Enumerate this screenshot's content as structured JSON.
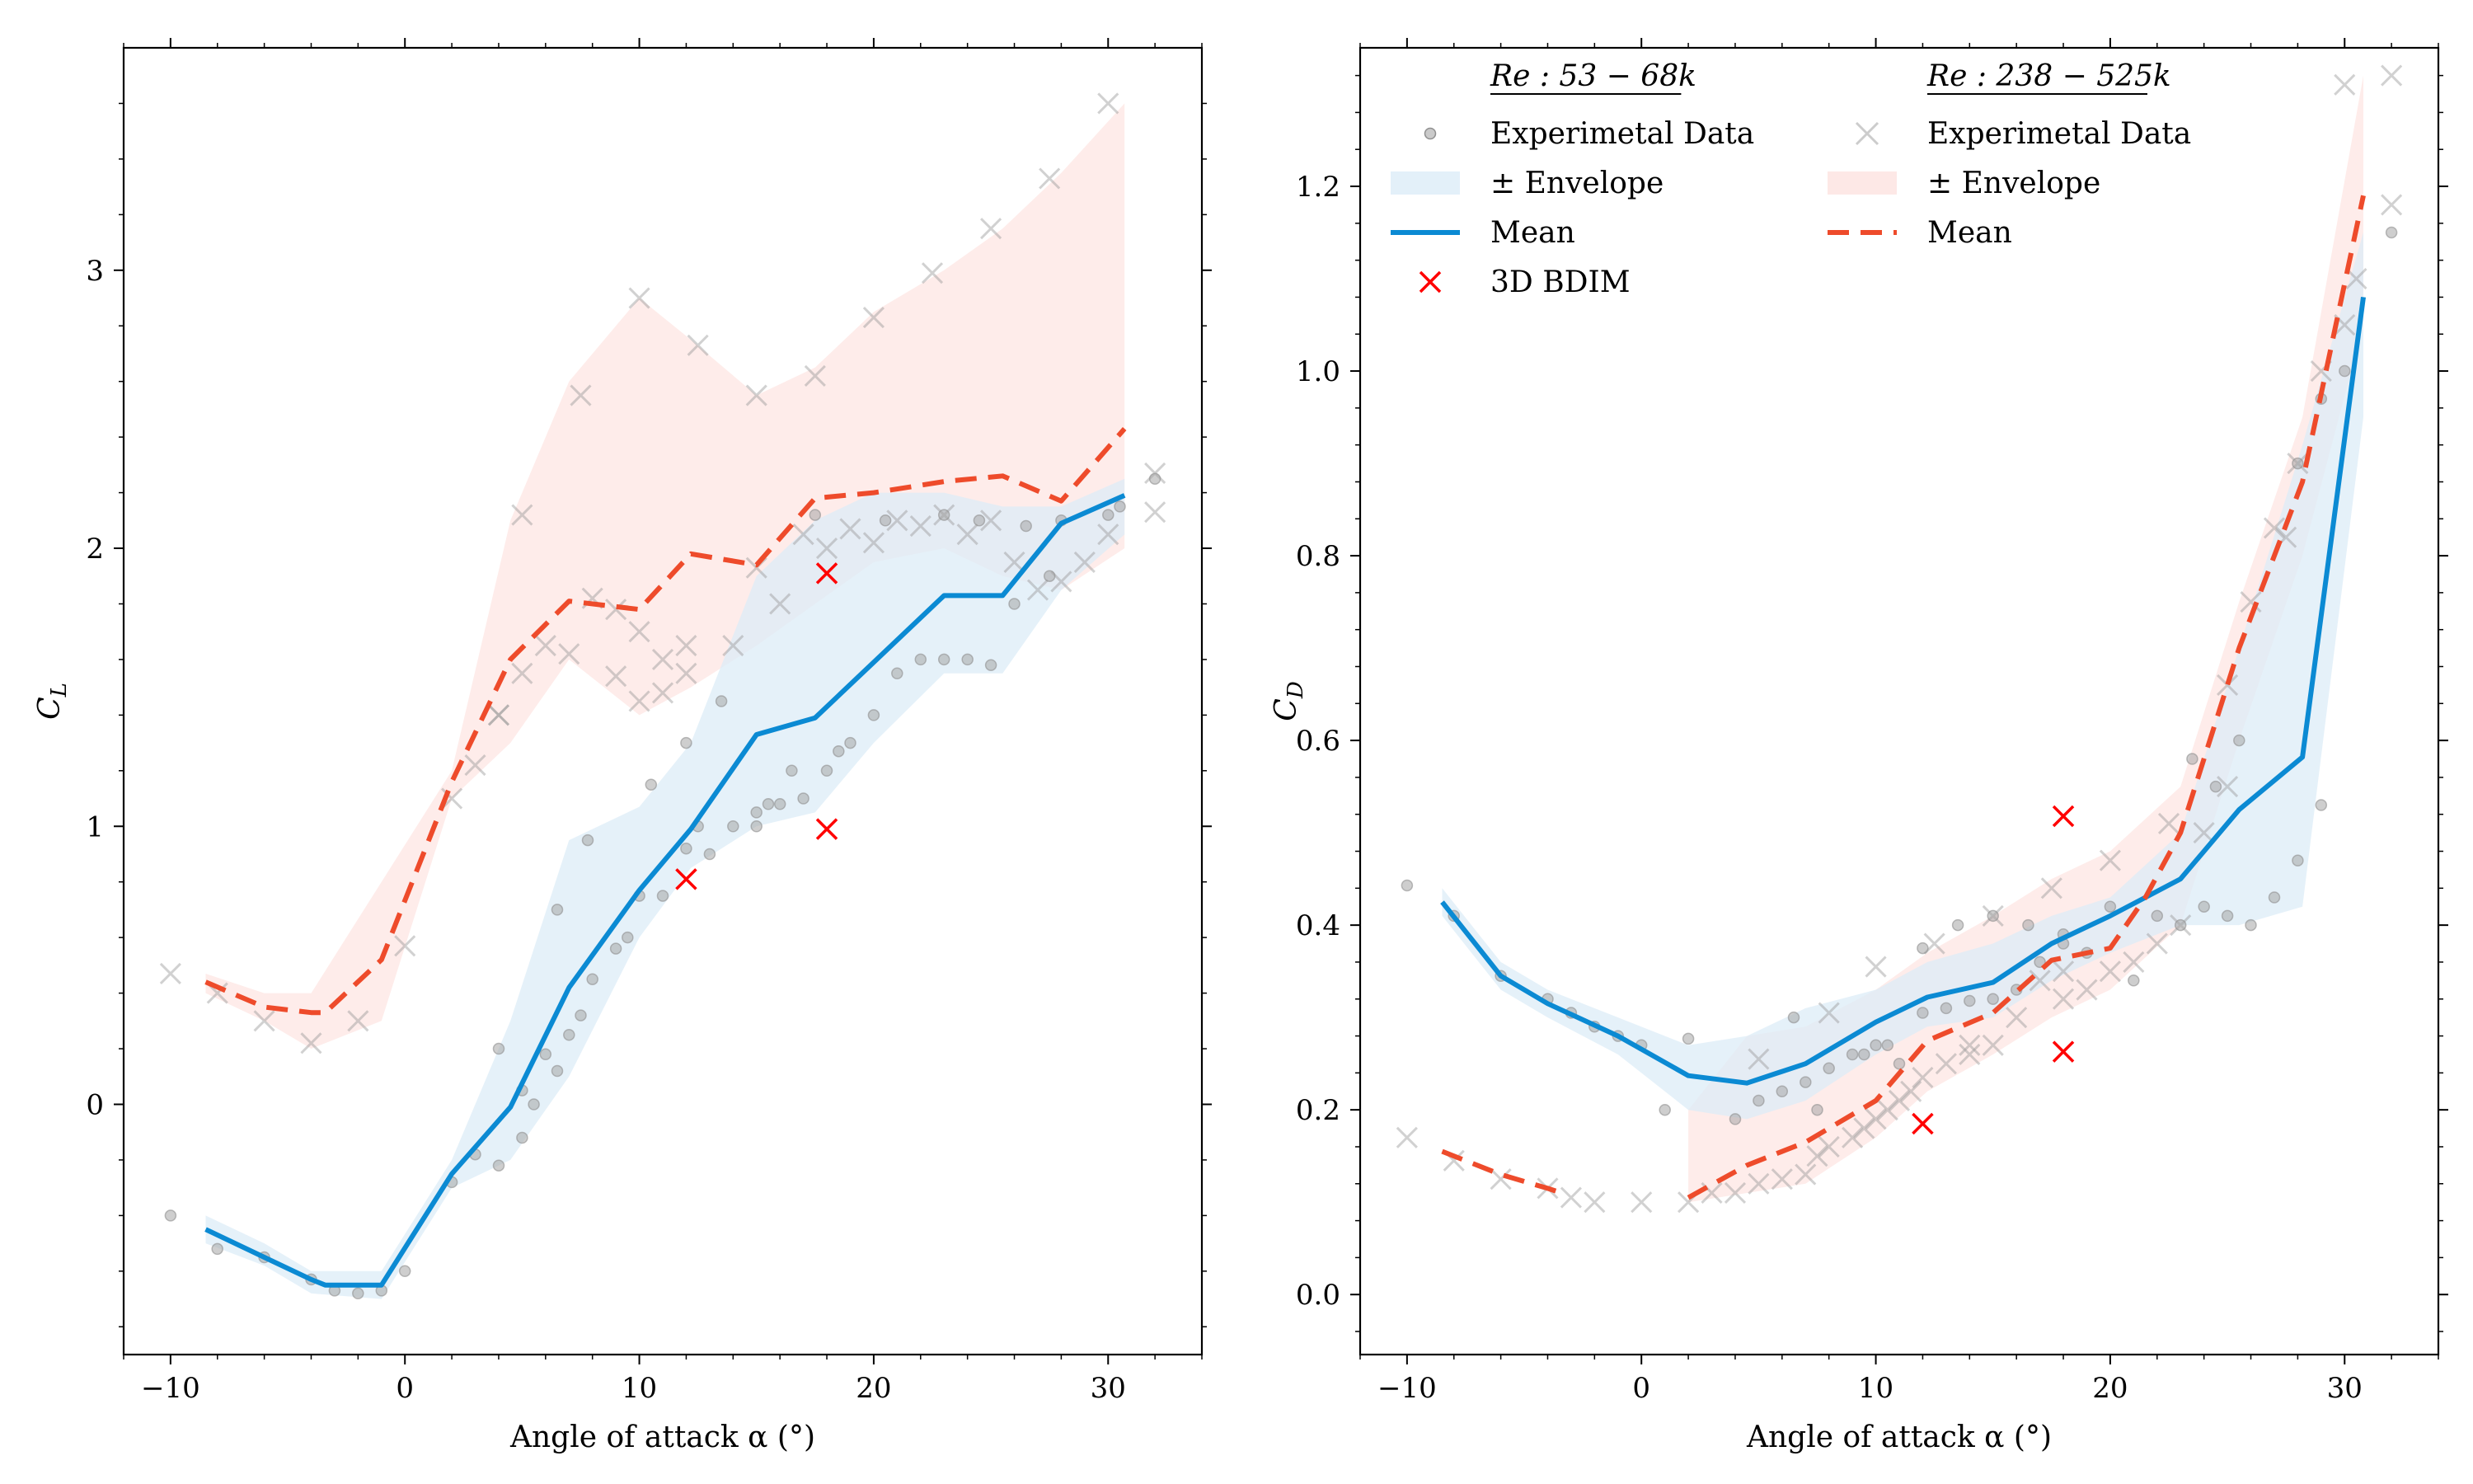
{
  "chart_data": [
    {
      "type": "line",
      "panel": "left",
      "xlabel": "Angle of attack α (°)",
      "ylabel": "C_L",
      "xlim": [
        -12,
        34
      ],
      "ylim": [
        -0.9,
        3.8
      ],
      "xticks": [
        -10,
        0,
        10,
        20,
        30
      ],
      "xtick_labels": [
        "−10",
        "0",
        "10",
        "20",
        "30"
      ],
      "yticks": [
        0,
        1,
        2,
        3
      ],
      "ytick_labels": [
        "0",
        "1",
        "2",
        "3"
      ],
      "low_re_mean": {
        "x": [
          -8.5,
          -6,
          -4,
          -3.4,
          -1,
          2,
          4.5,
          7,
          10,
          12.2,
          15,
          17.5,
          20,
          23,
          25.5,
          28,
          30.7
        ],
        "y": [
          -0.45,
          -0.55,
          -0.63,
          -0.65,
          -0.65,
          -0.25,
          -0.01,
          0.42,
          0.77,
          0.99,
          1.33,
          1.39,
          1.59,
          1.83,
          1.83,
          2.09,
          2.19
        ]
      },
      "low_re_band_upper": {
        "x": [
          -8.5,
          -6,
          -4,
          -1,
          2,
          4.5,
          7,
          10,
          12.2,
          15,
          17.5,
          20,
          23,
          25.5,
          28,
          30.7
        ],
        "y": [
          -0.4,
          -0.5,
          -0.6,
          -0.6,
          -0.2,
          0.3,
          0.95,
          1.07,
          1.3,
          1.9,
          2.1,
          2.2,
          2.2,
          2.15,
          2.15,
          2.25
        ]
      },
      "low_re_band_lower": {
        "x": [
          -8.5,
          -6,
          -4,
          -1,
          2,
          4.5,
          7,
          10,
          12.2,
          15,
          17.5,
          20,
          23,
          25.5,
          28,
          30.7
        ],
        "y": [
          -0.5,
          -0.58,
          -0.68,
          -0.7,
          -0.3,
          -0.2,
          0.1,
          0.6,
          0.85,
          1.0,
          1.05,
          1.3,
          1.55,
          1.55,
          1.85,
          2.05
        ]
      },
      "high_re_mean": {
        "x": [
          -8.5,
          -6,
          -4,
          -3.4,
          -1,
          2,
          4.5,
          7,
          10,
          12.2,
          15,
          17.5,
          20,
          23,
          25.5,
          28,
          30.7
        ],
        "y": [
          0.44,
          0.35,
          0.33,
          0.33,
          0.52,
          1.16,
          1.6,
          1.81,
          1.78,
          1.98,
          1.94,
          2.18,
          2.2,
          2.24,
          2.26,
          2.17,
          2.43
        ]
      },
      "high_re_band_upper": {
        "x": [
          -8.5,
          -6,
          -4,
          -1,
          2,
          4.5,
          7,
          10,
          12.2,
          15,
          17.5,
          20,
          23,
          25.5,
          28,
          30.7
        ],
        "y": [
          0.47,
          0.4,
          0.4,
          0.8,
          1.2,
          2.1,
          2.6,
          2.9,
          2.75,
          2.55,
          2.65,
          2.85,
          3.0,
          3.15,
          3.35,
          3.6
        ]
      },
      "high_re_band_lower": {
        "x": [
          -8.5,
          -6,
          -4,
          -1,
          2,
          4.5,
          7,
          10,
          12.2,
          15,
          17.5,
          20,
          23,
          25.5,
          28,
          30.7
        ],
        "y": [
          0.4,
          0.3,
          0.2,
          0.3,
          1.1,
          1.3,
          1.6,
          1.4,
          1.5,
          1.65,
          1.8,
          1.95,
          2.0,
          1.9,
          1.85,
          2.0
        ]
      },
      "low_re_experimental": {
        "x": [
          -10,
          -8,
          -6,
          -4,
          -3,
          -2,
          -1,
          0,
          2,
          3,
          4,
          5,
          5.5,
          6,
          6.5,
          7,
          7.5,
          8,
          9,
          10,
          11,
          12,
          13,
          14,
          15,
          16,
          17,
          18,
          19,
          20,
          21,
          22,
          23,
          24,
          25,
          26,
          28,
          30,
          32,
          4,
          5,
          6.5,
          7.8,
          9.5,
          10.5,
          12,
          12.5,
          13.5,
          15,
          15.5,
          16.5,
          17.5,
          18.5,
          20.5,
          23,
          24.5,
          26.5,
          27.5,
          30.5
        ],
        "y": [
          -0.4,
          -0.52,
          -0.55,
          -0.63,
          -0.67,
          -0.68,
          -0.67,
          -0.6,
          -0.28,
          -0.18,
          -0.22,
          -0.12,
          0.0,
          0.18,
          0.12,
          0.25,
          0.32,
          0.45,
          0.56,
          0.75,
          0.75,
          0.92,
          0.9,
          1.0,
          1.0,
          1.08,
          1.1,
          1.2,
          1.3,
          1.4,
          1.55,
          1.6,
          1.6,
          1.6,
          1.58,
          1.8,
          2.1,
          2.12,
          2.25,
          0.2,
          0.05,
          0.7,
          0.95,
          0.6,
          1.15,
          1.3,
          1.0,
          1.45,
          1.05,
          1.08,
          1.2,
          2.12,
          1.27,
          2.1,
          2.12,
          2.1,
          2.08,
          1.9,
          2.15
        ]
      },
      "high_re_experimental": {
        "x": [
          -10,
          -8,
          -6,
          -4,
          -2,
          0,
          2,
          3,
          4,
          5,
          6,
          7,
          8,
          9,
          10,
          11,
          12,
          10,
          11,
          12,
          14,
          15,
          16,
          17,
          18,
          19,
          20,
          21,
          22,
          23,
          24,
          25,
          26,
          27,
          28,
          29,
          30,
          32,
          4,
          5,
          7.5,
          9,
          10,
          12.5,
          15,
          17.5,
          20,
          22.5,
          25,
          27.5,
          30,
          32
        ],
        "y": [
          0.47,
          0.4,
          0.3,
          0.22,
          0.3,
          0.57,
          1.1,
          1.22,
          1.4,
          1.55,
          1.65,
          1.62,
          1.82,
          1.54,
          1.7,
          1.6,
          1.65,
          1.45,
          1.48,
          1.55,
          1.65,
          1.93,
          1.8,
          2.05,
          2.0,
          2.07,
          2.02,
          2.1,
          2.08,
          2.12,
          2.05,
          2.1,
          1.95,
          1.85,
          1.88,
          1.95,
          2.05,
          2.13,
          1.4,
          2.12,
          2.55,
          1.78,
          2.9,
          2.73,
          2.55,
          2.62,
          2.83,
          2.99,
          3.15,
          3.33,
          3.6,
          2.27
        ]
      },
      "bdim_3d": {
        "x": [
          12,
          18,
          18
        ],
        "y": [
          0.81,
          1.91,
          0.99
        ]
      }
    },
    {
      "type": "line",
      "panel": "right",
      "xlabel": "Angle of attack α (°)",
      "ylabel": "C_D",
      "xlim": [
        -12,
        34
      ],
      "ylim": [
        -0.065,
        1.35
      ],
      "xticks": [
        -10,
        0,
        10,
        20,
        30
      ],
      "xtick_labels": [
        "−10",
        "0",
        "10",
        "20",
        "30"
      ],
      "yticks": [
        0.0,
        0.2,
        0.4,
        0.6,
        0.8,
        1.0,
        1.2
      ],
      "ytick_labels": [
        "0.0",
        "0.2",
        "0.4",
        "0.6",
        "0.8",
        "1.0",
        "1.2"
      ],
      "low_re_mean": {
        "x": [
          -8.5,
          -6,
          -4,
          -1,
          2,
          4.5,
          7,
          10,
          12.2,
          15,
          17.5,
          20,
          21.5,
          23,
          25.5,
          28.2,
          30.8
        ],
        "y": [
          0.425,
          0.345,
          0.315,
          0.28,
          0.237,
          0.229,
          0.25,
          0.295,
          0.322,
          0.338,
          0.38,
          0.41,
          0.43,
          0.45,
          0.525,
          0.582,
          1.08
        ]
      },
      "low_re_band_upper": {
        "x": [
          -8.5,
          -6,
          -4,
          -1,
          2,
          4.5,
          7,
          10,
          12.2,
          15,
          17.5,
          20,
          23,
          25.5,
          28.2,
          30.8
        ],
        "y": [
          0.44,
          0.36,
          0.33,
          0.3,
          0.27,
          0.28,
          0.31,
          0.33,
          0.36,
          0.38,
          0.41,
          0.43,
          0.5,
          0.7,
          0.92,
          1.15
        ]
      },
      "low_re_band_lower": {
        "x": [
          -8.5,
          -6,
          -4,
          -1,
          2,
          4.5,
          7,
          10,
          12.2,
          15,
          17.5,
          20,
          23,
          25.5,
          28.2,
          30.8
        ],
        "y": [
          0.41,
          0.33,
          0.3,
          0.26,
          0.2,
          0.19,
          0.21,
          0.26,
          0.29,
          0.3,
          0.34,
          0.37,
          0.4,
          0.4,
          0.42,
          0.95
        ]
      },
      "high_re_mean_segment1": {
        "x": [
          -8.5,
          -6,
          -4,
          -3.4
        ],
        "y": [
          0.155,
          0.13,
          0.115,
          0.11
        ]
      },
      "high_re_mean_segment2": {
        "x": [
          2,
          4.5,
          7,
          10,
          12.2,
          15,
          17.5,
          20,
          21.5,
          23,
          25.5,
          28.2,
          30.8
        ],
        "y": [
          0.105,
          0.14,
          0.165,
          0.21,
          0.275,
          0.305,
          0.362,
          0.375,
          0.43,
          0.5,
          0.7,
          0.88,
          1.19
        ]
      },
      "high_re_band_upper": {
        "x": [
          2,
          4.5,
          7,
          10,
          12.2,
          15,
          17.5,
          20,
          23,
          25.5,
          28.2,
          30.8
        ],
        "y": [
          0.2,
          0.28,
          0.29,
          0.33,
          0.37,
          0.41,
          0.45,
          0.48,
          0.55,
          0.75,
          0.95,
          1.32
        ]
      },
      "high_re_band_lower": {
        "x": [
          2,
          4.5,
          7,
          10,
          12.2,
          15,
          17.5,
          20,
          23,
          25.5,
          28.2,
          30.8
        ],
        "y": [
          0.1,
          0.11,
          0.12,
          0.17,
          0.22,
          0.26,
          0.3,
          0.33,
          0.4,
          0.6,
          0.8,
          1.05
        ]
      },
      "low_re_experimental": {
        "x": [
          -10,
          -8,
          -6,
          -4,
          -3,
          -2,
          -1,
          0,
          1,
          2,
          4,
          5,
          6,
          6.5,
          7,
          7.5,
          8,
          9,
          10,
          11,
          12,
          13,
          14,
          15,
          16,
          17,
          18,
          19,
          20,
          21,
          22,
          23,
          24,
          25,
          26,
          27,
          28,
          29,
          30,
          32,
          9.5,
          10.5,
          12,
          13.5,
          15,
          16.5,
          18,
          23.5,
          24.5,
          25.5,
          28,
          29
        ],
        "y": [
          0.443,
          0.41,
          0.345,
          0.32,
          0.305,
          0.29,
          0.28,
          0.27,
          0.2,
          0.277,
          0.19,
          0.21,
          0.22,
          0.3,
          0.23,
          0.2,
          0.245,
          0.26,
          0.27,
          0.25,
          0.305,
          0.31,
          0.318,
          0.32,
          0.33,
          0.36,
          0.38,
          0.37,
          0.42,
          0.34,
          0.41,
          0.4,
          0.42,
          0.41,
          0.4,
          0.43,
          0.47,
          0.53,
          1.0,
          1.15,
          0.26,
          0.27,
          0.375,
          0.4,
          0.41,
          0.4,
          0.39,
          0.58,
          0.55,
          0.6,
          0.9,
          0.97
        ]
      },
      "high_re_experimental": {
        "x": [
          -10,
          -8,
          -6,
          -4,
          -3,
          -2,
          0,
          2,
          3,
          4,
          5,
          6,
          7,
          7.5,
          8,
          9,
          9.5,
          10,
          10.5,
          11,
          11.5,
          12,
          13,
          14,
          15,
          16,
          17,
          18,
          19,
          20,
          21,
          22,
          23,
          24,
          25,
          26,
          27,
          28,
          29,
          30,
          30.5,
          32,
          5,
          8,
          10,
          12.5,
          15,
          17.5,
          20,
          22.5,
          25,
          27.5,
          30,
          32,
          18,
          14
        ],
        "y": [
          0.17,
          0.145,
          0.125,
          0.115,
          0.105,
          0.1,
          0.1,
          0.1,
          0.11,
          0.11,
          0.12,
          0.125,
          0.13,
          0.15,
          0.16,
          0.17,
          0.18,
          0.19,
          0.2,
          0.21,
          0.22,
          0.235,
          0.25,
          0.26,
          0.27,
          0.3,
          0.34,
          0.35,
          0.33,
          0.35,
          0.36,
          0.38,
          0.4,
          0.5,
          0.55,
          0.75,
          0.83,
          0.9,
          1.0,
          1.05,
          1.1,
          1.18,
          0.255,
          0.305,
          0.355,
          0.38,
          0.41,
          0.44,
          0.47,
          0.51,
          0.66,
          0.82,
          1.31,
          1.32,
          0.32,
          0.27
        ]
      },
      "bdim_3d": {
        "x": [
          12,
          18,
          18
        ],
        "y": [
          0.185,
          0.518,
          0.263
        ]
      },
      "legend": {
        "low_re_heading": "Re : 53 − 68k",
        "high_re_heading": "Re : 238 − 525k",
        "low_re_entries": [
          "Experimetal Data",
          "± Envelope",
          "Mean",
          "3D BDIM"
        ],
        "high_re_entries": [
          "Experimetal Data",
          "± Envelope",
          "Mean"
        ],
        "placement": "top-left"
      }
    }
  ],
  "colors": {
    "low_re_mean": "#0b8ad3",
    "low_re_band": "#dcecf7",
    "high_re_mean": "#ee4b2b",
    "high_re_band": "#fde6e3",
    "experimental_marker": "#a6a6a6",
    "bdim_marker": "#ff0000"
  }
}
